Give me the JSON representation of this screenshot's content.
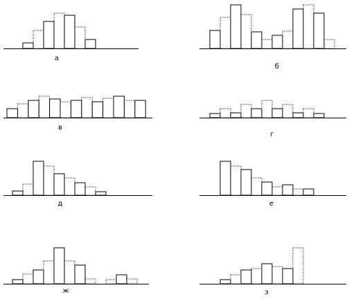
{
  "chart_data": [
    {
      "type": "bar",
      "title": "а",
      "values": [
        8,
        26,
        39,
        51,
        48,
        31,
        13
      ]
    },
    {
      "type": "bar",
      "title": "б",
      "values": [
        26,
        45,
        63,
        49,
        24,
        13,
        19,
        25,
        57,
        63,
        51,
        13
      ]
    },
    {
      "type": "bar",
      "title": "в",
      "values": [
        13,
        20,
        25,
        31,
        27,
        23,
        25,
        29,
        23,
        28,
        31,
        25,
        25
      ]
    },
    {
      "type": "bar",
      "title": "г",
      "values": [
        6,
        13,
        7,
        19,
        13,
        25,
        13,
        19,
        7,
        13,
        6
      ]
    },
    {
      "type": "bar",
      "title": "д",
      "values": [
        6,
        16,
        49,
        42,
        31,
        25,
        18,
        12,
        5
      ]
    },
    {
      "type": "bar",
      "title": "е",
      "values": [
        49,
        42,
        37,
        25,
        19,
        12,
        15,
        9,
        9
      ]
    },
    {
      "type": "bar",
      "title": "ж",
      "values": [
        6,
        14,
        20,
        33,
        52,
        33,
        27,
        7,
        0,
        6,
        13,
        7
      ]
    },
    {
      "type": "bar",
      "title": "з",
      "values": [
        6,
        13,
        20,
        22,
        29,
        25,
        22,
        52
      ]
    }
  ]
}
